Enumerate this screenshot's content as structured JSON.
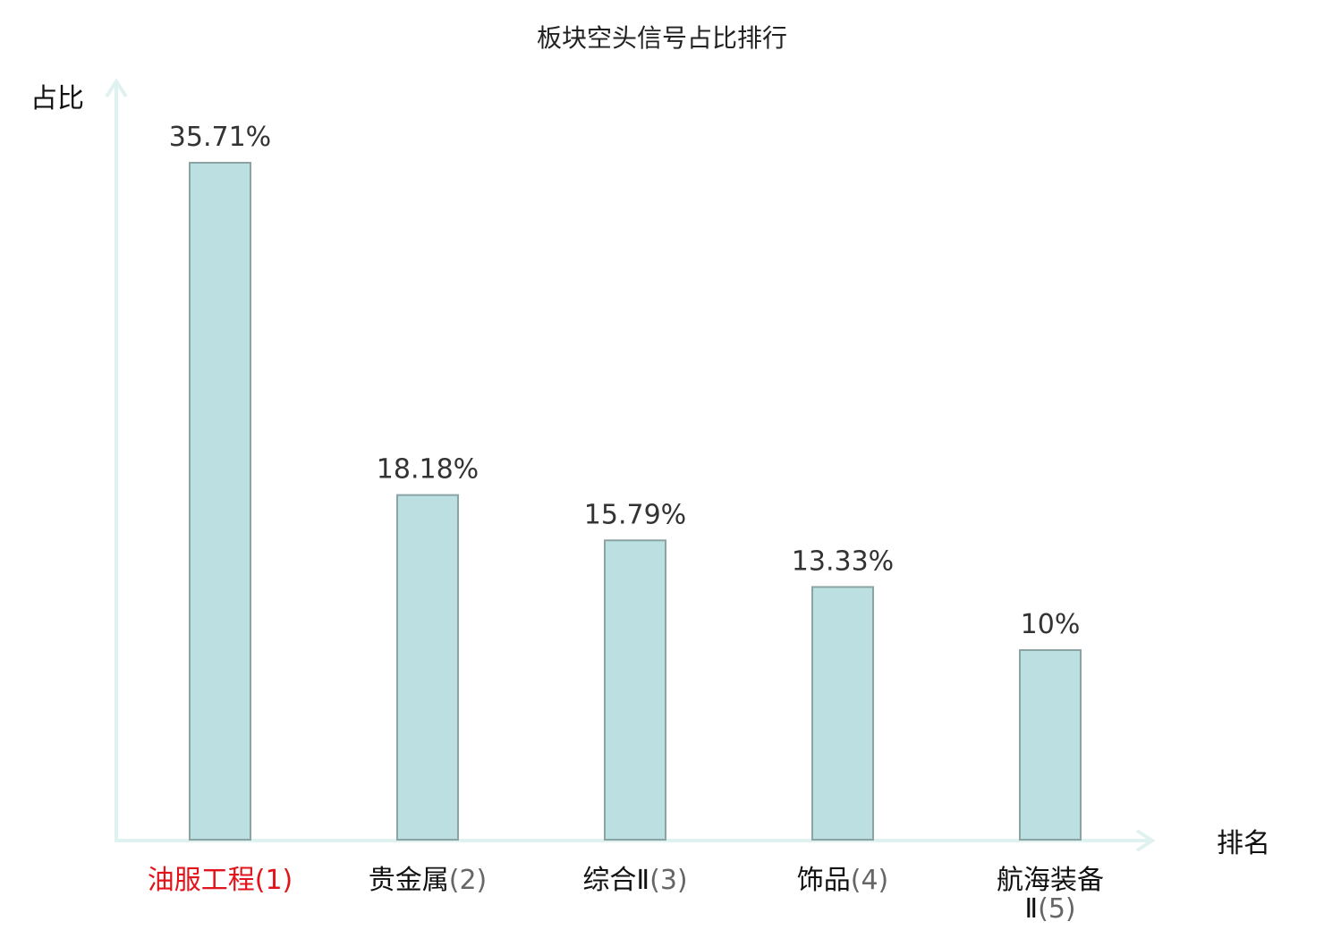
{
  "chart_data": {
    "type": "bar",
    "title": "板块空头信号占比排行",
    "ylabel": "占比",
    "xlabel": "排名",
    "categories": [
      "油服工程",
      "贵金属",
      "综合Ⅱ",
      "饰品",
      "航海装备Ⅱ"
    ],
    "ranks": [
      "(1)",
      "(2)",
      "(3)",
      "(4)",
      "(5)"
    ],
    "values": [
      35.71,
      18.18,
      15.79,
      13.33,
      10
    ],
    "value_labels": [
      "35.71%",
      "18.18%",
      "15.79%",
      "13.33%",
      "10%"
    ],
    "ylim": [
      0,
      35.71
    ],
    "highlight_index": 0,
    "grid": false,
    "colors": {
      "bar_fill": "#bce0e2",
      "bar_stroke": "#8aa3a3",
      "axis": "#dff2ef",
      "highlight_text": "#e0141a"
    }
  }
}
